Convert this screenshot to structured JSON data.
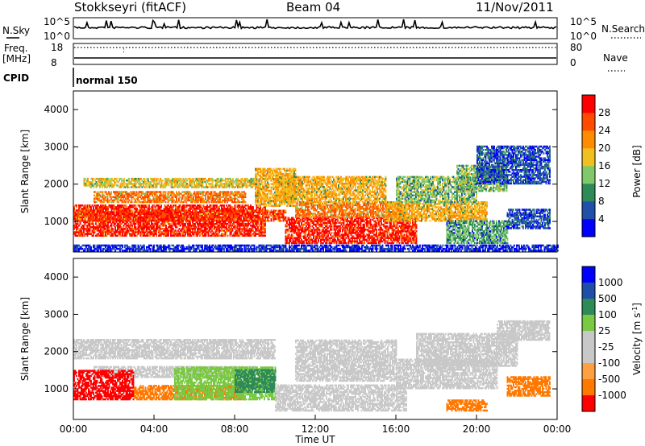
{
  "header": {
    "station": "Stokkseyri (fitACF)",
    "beam": "Beam 04",
    "date": "11/Nov/2011"
  },
  "noise_panel": {
    "left_label": "N.Sky",
    "right_label": "N.Search",
    "left_ticks": [
      "10^5",
      "10^0"
    ],
    "right_ticks": [
      "10^5",
      "10^0"
    ]
  },
  "freq_panel": {
    "left_label_1": "Freq.",
    "left_label_2": "[MHz]",
    "left_ticks": [
      "18",
      "8"
    ],
    "right_label": "Nave",
    "right_ticks": [
      "80",
      "0"
    ]
  },
  "cpid_panel": {
    "label": "CPID",
    "program": "normal 150"
  },
  "colors": {
    "power": [
      "#0000ff",
      "#2050a8",
      "#2e8b57",
      "#7fc96a",
      "#f0c020",
      "#ff8c00",
      "#ff4a00",
      "#ff0000"
    ],
    "velocity": [
      "#ff0000",
      "#ff7800",
      "#ffa040",
      "#c8c8c8",
      "#c8c8c8",
      "#7ac943",
      "#2e8b57",
      "#1e4ea8",
      "#0000ff"
    ],
    "ground_scatter": "#c8c8c8"
  },
  "chart_data": [
    {
      "type": "heatmap",
      "name": "power",
      "ylabel": "Slant Range [km]",
      "yticks": [
        "1000",
        "2000",
        "3000",
        "4000"
      ],
      "ylim": [
        180,
        4500
      ],
      "xlim": [
        "00:00",
        "24:00"
      ],
      "colorbar_label": "Power [dB]",
      "colorbar_ticks": [
        "4",
        "8",
        "12",
        "16",
        "20",
        "24",
        "28"
      ],
      "colorbar_range": [
        0,
        32
      ],
      "regions": [
        {
          "t": [
            0.0,
            9.5
          ],
          "r": [
            600,
            1450
          ],
          "level": 30
        },
        {
          "t": [
            0.0,
            10.5
          ],
          "r": [
            1000,
            1300
          ],
          "level": 28
        },
        {
          "t": [
            1.0,
            8.5
          ],
          "r": [
            1500,
            1800
          ],
          "level": 24
        },
        {
          "t": [
            0.5,
            9.0
          ],
          "r": [
            1900,
            2150
          ],
          "level": 18
        },
        {
          "t": [
            9.0,
            11.0
          ],
          "r": [
            1400,
            2400
          ],
          "level": 20
        },
        {
          "t": [
            10.0,
            15.5
          ],
          "r": [
            1500,
            2200
          ],
          "level": 20
        },
        {
          "t": [
            10.5,
            17.0
          ],
          "r": [
            400,
            1100
          ],
          "level": 30
        },
        {
          "t": [
            11.0,
            16.5
          ],
          "r": [
            1100,
            1500
          ],
          "level": 24
        },
        {
          "t": [
            15.5,
            20.5
          ],
          "r": [
            1000,
            1500
          ],
          "level": 20
        },
        {
          "t": [
            16.0,
            20.0
          ],
          "r": [
            1500,
            2200
          ],
          "level": 14
        },
        {
          "t": [
            18.5,
            21.5
          ],
          "r": [
            400,
            1000
          ],
          "level": 12
        },
        {
          "t": [
            19.0,
            21.5
          ],
          "r": [
            1800,
            2500
          ],
          "level": 14
        },
        {
          "t": [
            20.0,
            23.6
          ],
          "r": [
            2000,
            3000
          ],
          "level": 6
        },
        {
          "t": [
            21.5,
            23.6
          ],
          "r": [
            800,
            1300
          ],
          "level": 6
        },
        {
          "t": [
            0.0,
            24.0
          ],
          "r": [
            200,
            350
          ],
          "level": 4
        }
      ]
    },
    {
      "type": "heatmap",
      "name": "velocity",
      "ylabel": "Slant Range [km]",
      "yticks": [
        "1000",
        "2000",
        "3000",
        "4000"
      ],
      "ylim": [
        180,
        4500
      ],
      "xlabel": "Time UT",
      "xticks": [
        "00:00",
        "04:00",
        "08:00",
        "12:00",
        "16:00",
        "20:00",
        "00:00"
      ],
      "xlim": [
        "00:00",
        "24:00"
      ],
      "colorbar_label": "Velocity [m s^-1]",
      "colorbar_ticks": [
        "1000",
        "500",
        "100",
        "25",
        "-25",
        "-100",
        "-500",
        "-1000"
      ],
      "regions": [
        {
          "t": [
            0.0,
            10.0
          ],
          "r": [
            1800,
            2300
          ],
          "level": 0
        },
        {
          "t": [
            1.0,
            9.0
          ],
          "r": [
            1300,
            1600
          ],
          "level": 0
        },
        {
          "t": [
            0.0,
            3.0
          ],
          "r": [
            700,
            1500
          ],
          "level": -600
        },
        {
          "t": [
            3.0,
            8.5
          ],
          "r": [
            700,
            1100
          ],
          "level": -150
        },
        {
          "t": [
            5.0,
            10.0
          ],
          "r": [
            700,
            1600
          ],
          "level": 80
        },
        {
          "t": [
            8.0,
            10.0
          ],
          "r": [
            900,
            1500
          ],
          "level": 300
        },
        {
          "t": [
            10.0,
            16.5
          ],
          "r": [
            400,
            1100
          ],
          "level": 0
        },
        {
          "t": [
            11.0,
            16.0
          ],
          "r": [
            1200,
            2300
          ],
          "level": 0
        },
        {
          "t": [
            16.0,
            21.0
          ],
          "r": [
            1000,
            1800
          ],
          "level": 0
        },
        {
          "t": [
            17.0,
            22.0
          ],
          "r": [
            1600,
            2500
          ],
          "level": 0
        },
        {
          "t": [
            21.0,
            23.6
          ],
          "r": [
            2300,
            2800
          ],
          "level": 0
        },
        {
          "t": [
            18.5,
            20.5
          ],
          "r": [
            400,
            700
          ],
          "level": -200
        },
        {
          "t": [
            21.5,
            23.6
          ],
          "r": [
            800,
            1300
          ],
          "level": -300
        }
      ]
    }
  ]
}
